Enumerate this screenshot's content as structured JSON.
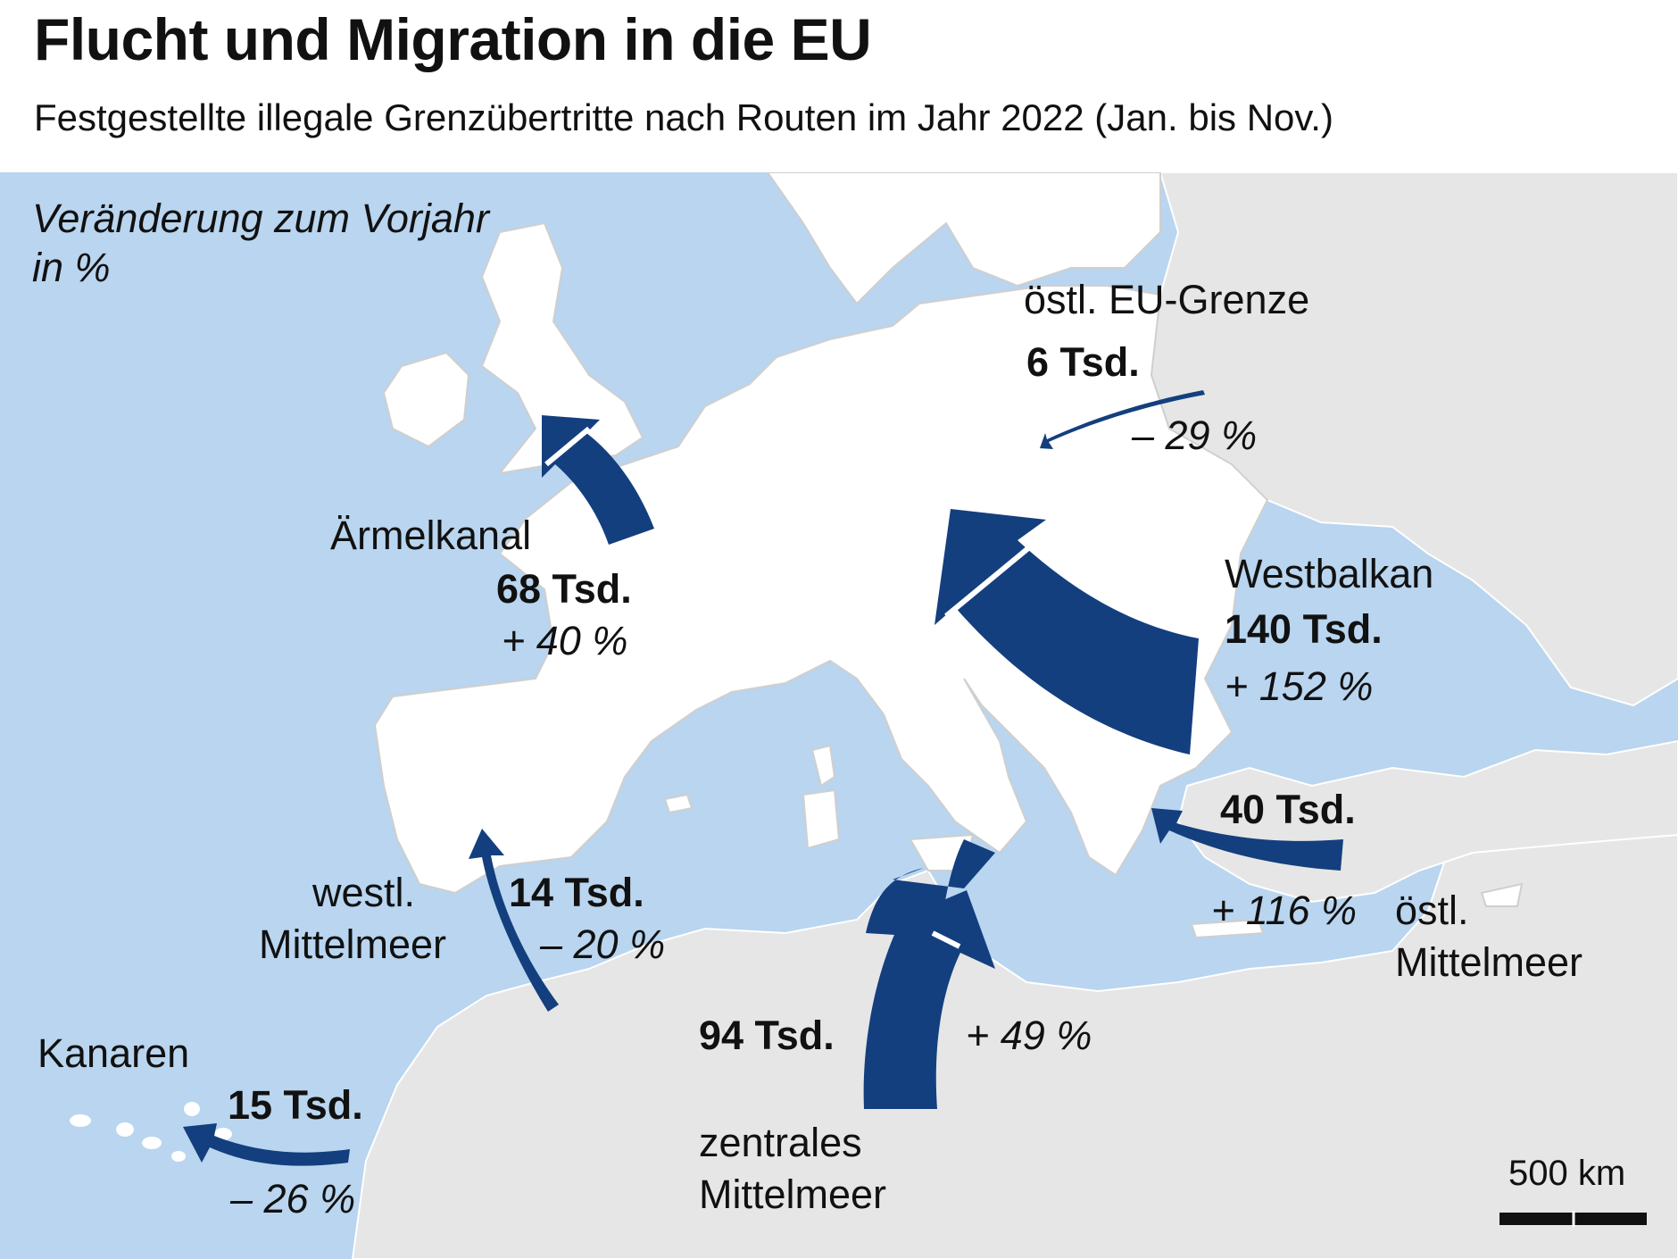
{
  "title": "Flucht und Migration in die EU",
  "subtitle": "Festgestellte illegale Grenzübertritte nach Routen im Jahr 2022 (Jan. bis Nov.)",
  "legend": {
    "line1": "Veränderung zum Vorjahr",
    "line2": "in %"
  },
  "scale": {
    "label": "500 km"
  },
  "colors": {
    "sea": "#b9d5ef",
    "eu_land": "#ffffff",
    "non_eu_land": "#e6e6e6",
    "arrow": "#133f7e"
  },
  "routes": [
    {
      "id": "oestl-eu-grenze",
      "name": "östl. EU-Grenze",
      "count": "6 Tsd.",
      "change": "– 29 %",
      "value_thousands": 6,
      "change_percent": -29
    },
    {
      "id": "aermelkanal",
      "name": "Ärmelkanal",
      "count": "68 Tsd.",
      "change": "+ 40 %",
      "value_thousands": 68,
      "change_percent": 40
    },
    {
      "id": "westbalkan",
      "name": "Westbalkan",
      "count": "140 Tsd.",
      "change": "+ 152 %",
      "value_thousands": 140,
      "change_percent": 152
    },
    {
      "id": "oestl-mittelmeer",
      "name_line1": "östl.",
      "name_line2": "Mittelmeer",
      "count": "40 Tsd.",
      "change": "+ 116 %",
      "value_thousands": 40,
      "change_percent": 116
    },
    {
      "id": "westl-mittelmeer",
      "name_line1": "westl.",
      "name_line2": "Mittelmeer",
      "count": "14 Tsd.",
      "change": "– 20 %",
      "value_thousands": 14,
      "change_percent": -20
    },
    {
      "id": "zentrales-mittelmeer",
      "name_line1": "zentrales",
      "name_line2": "Mittelmeer",
      "count": "94 Tsd.",
      "change": "+ 49 %",
      "value_thousands": 94,
      "change_percent": 49
    },
    {
      "id": "kanaren",
      "name": "Kanaren",
      "count": "15 Tsd.",
      "change": "– 26 %",
      "value_thousands": 15,
      "change_percent": -26
    }
  ]
}
